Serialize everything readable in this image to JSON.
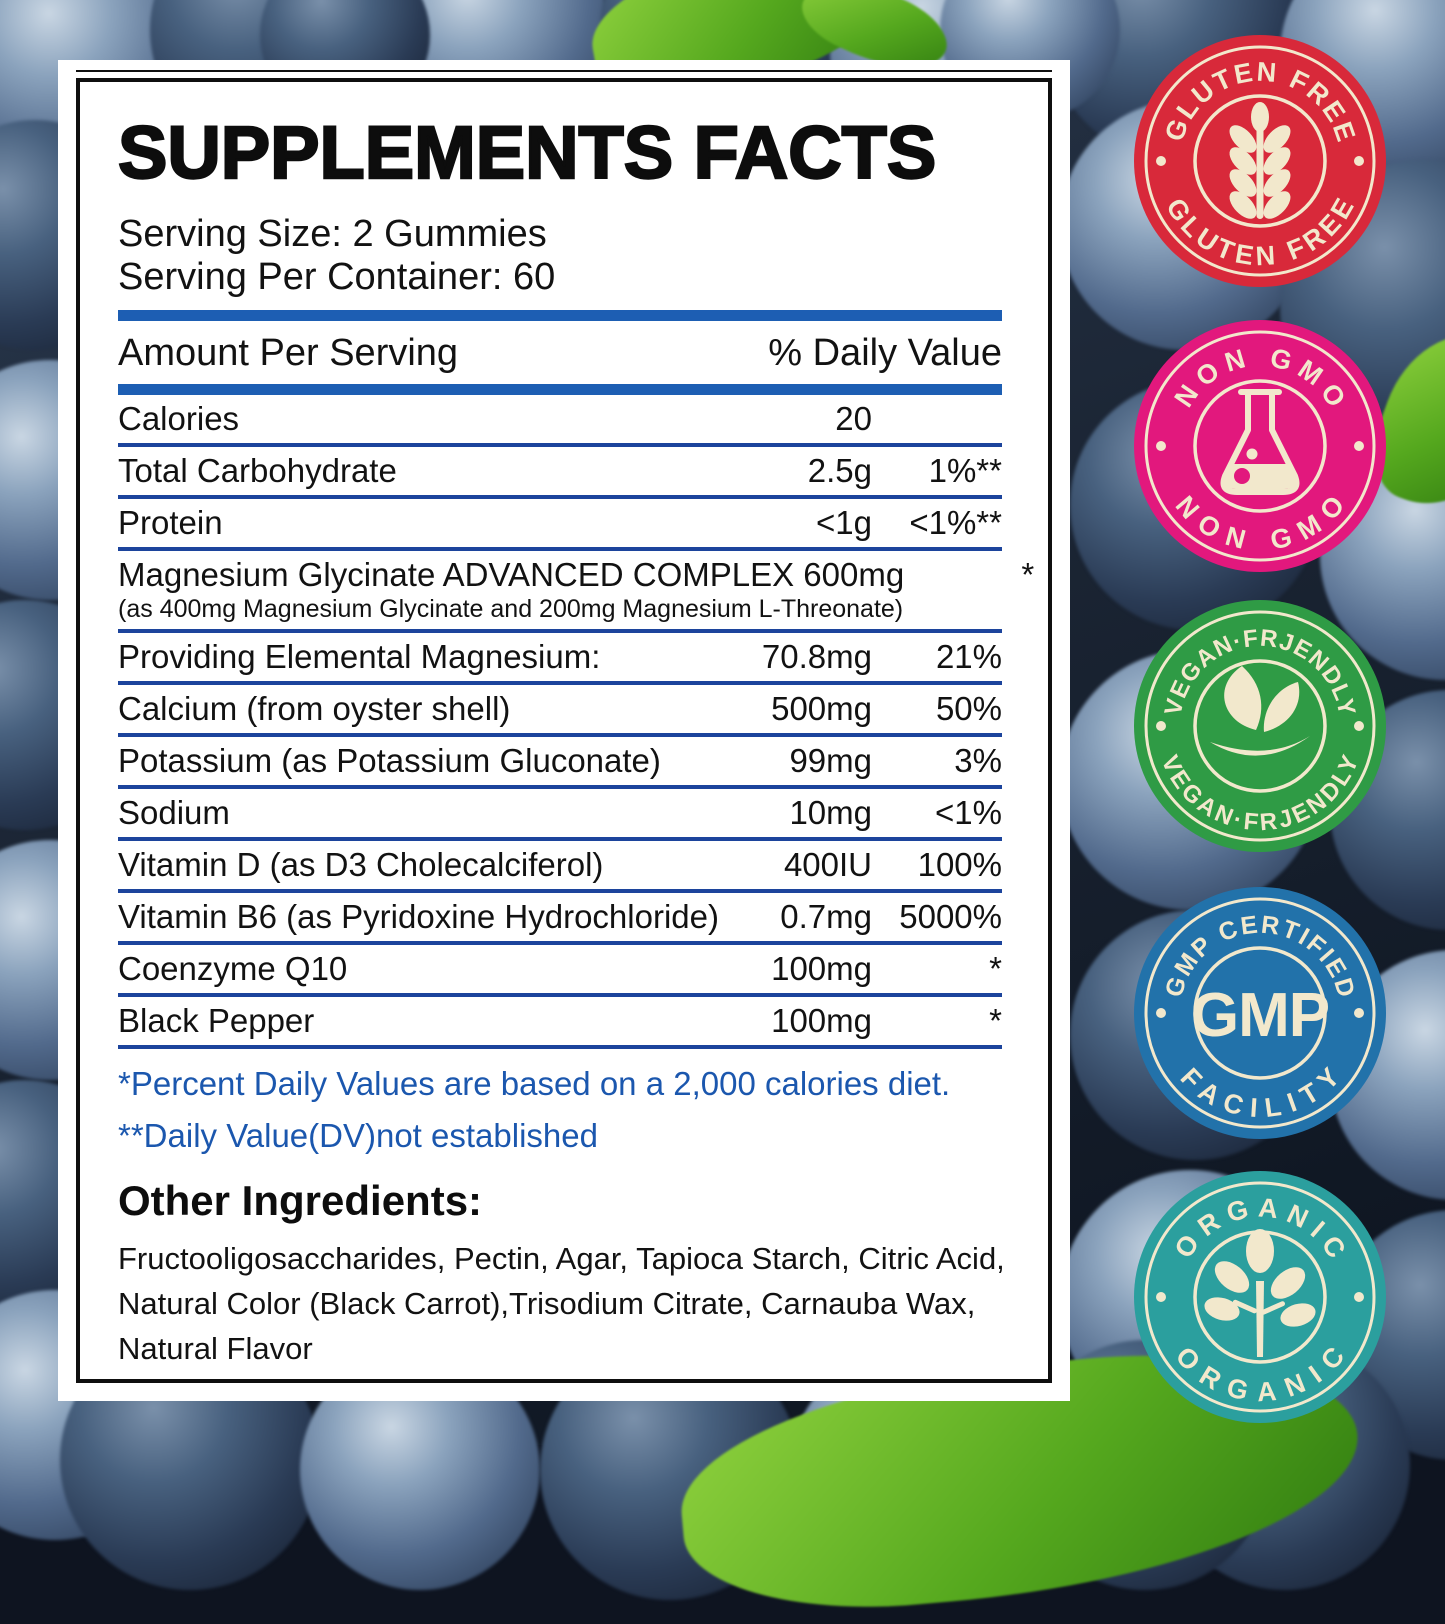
{
  "label": {
    "title": "SUPPLEMENTS FACTS",
    "serving_size": "Serving Size: 2 Gummies",
    "serving_per_container": "Serving Per Container: 60",
    "table": {
      "header": {
        "left": "Amount Per Serving",
        "right": "% Daily Value"
      },
      "rows": [
        {
          "name": "Calories",
          "amount": "20",
          "dv": ""
        },
        {
          "name": "Total Carbohydrate",
          "amount": "2.5g",
          "dv": "1%**"
        },
        {
          "name": "Protein",
          "amount": "<1g",
          "dv": "<1%**"
        },
        {
          "name": "Magnesium Glycinate ADVANCED COMPLEX 600mg",
          "sub": "(as 400mg Magnesium Glycinate and 200mg Magnesium L-Threonate)",
          "amount": "",
          "dv": "*"
        },
        {
          "name": "Providing Elemental Magnesium:",
          "amount": "70.8mg",
          "dv": "21%"
        },
        {
          "name": "Calcium (from oyster shell)",
          "amount": "500mg",
          "dv": "50%"
        },
        {
          "name": "Potassium (as Potassium Gluconate)",
          "amount": "99mg",
          "dv": "3%"
        },
        {
          "name": "Sodium",
          "amount": "10mg",
          "dv": "<1%"
        },
        {
          "name": "Vitamin D (as D3 Cholecalciferol)",
          "amount": "400IU",
          "dv": "100%"
        },
        {
          "name": "Vitamin B6 (as Pyridoxine Hydrochloride)",
          "amount": "0.7mg",
          "dv": "5000%"
        },
        {
          "name": "Coenzyme Q10",
          "amount": "100mg",
          "dv": "*"
        },
        {
          "name": "Black Pepper",
          "amount": "100mg",
          "dv": "*"
        }
      ]
    },
    "footnotes": [
      "*Percent Daily Values are based on a 2,000 calories diet.",
      "**Daily Value(DV)not established"
    ],
    "other_ingredients": {
      "heading": "Other Ingredients:",
      "lines": [
        "Fructooligosaccharides, Pectin, Agar, Tapioca Starch, Citric Acid,",
        "Natural Color (Black Carrot),Trisodium Citrate, Carnauba Wax,",
        "Natural Flavor"
      ]
    }
  },
  "badges": [
    {
      "id": "gluten-free",
      "top_text": "GLUTEN FREE",
      "bottom_text": "GLUTEN FREE",
      "icon": "wheat-icon",
      "color": "#d8293a"
    },
    {
      "id": "non-gmo",
      "top_text": "NON GMO",
      "bottom_text": "NON GMO",
      "icon": "flask-icon",
      "color": "#e2187d"
    },
    {
      "id": "vegan-friendly",
      "top_text": "VEGAN·FRJENDLY",
      "bottom_text": "VEGAN·FRJENDLY",
      "icon": "leaves-icon",
      "color": "#2f9b45"
    },
    {
      "id": "gmp-certified",
      "top_text": "GMP CERTIFIED",
      "bottom_text": "FACILITY",
      "icon": "gmp-letters",
      "center_text": "GMP",
      "color": "#2272aa"
    },
    {
      "id": "organic",
      "top_text": "ORGANIC",
      "bottom_text": "ORGANIC",
      "icon": "plant-icon",
      "color": "#2b9f9e"
    }
  ],
  "colors": {
    "divider_blue": "#1d5eb3",
    "hairline_blue": "#1c449c",
    "footnote_blue": "#1b57ae",
    "panel_white": "#ffffff",
    "text_black": "#121212",
    "badge_cream": "#f2e8cc"
  }
}
